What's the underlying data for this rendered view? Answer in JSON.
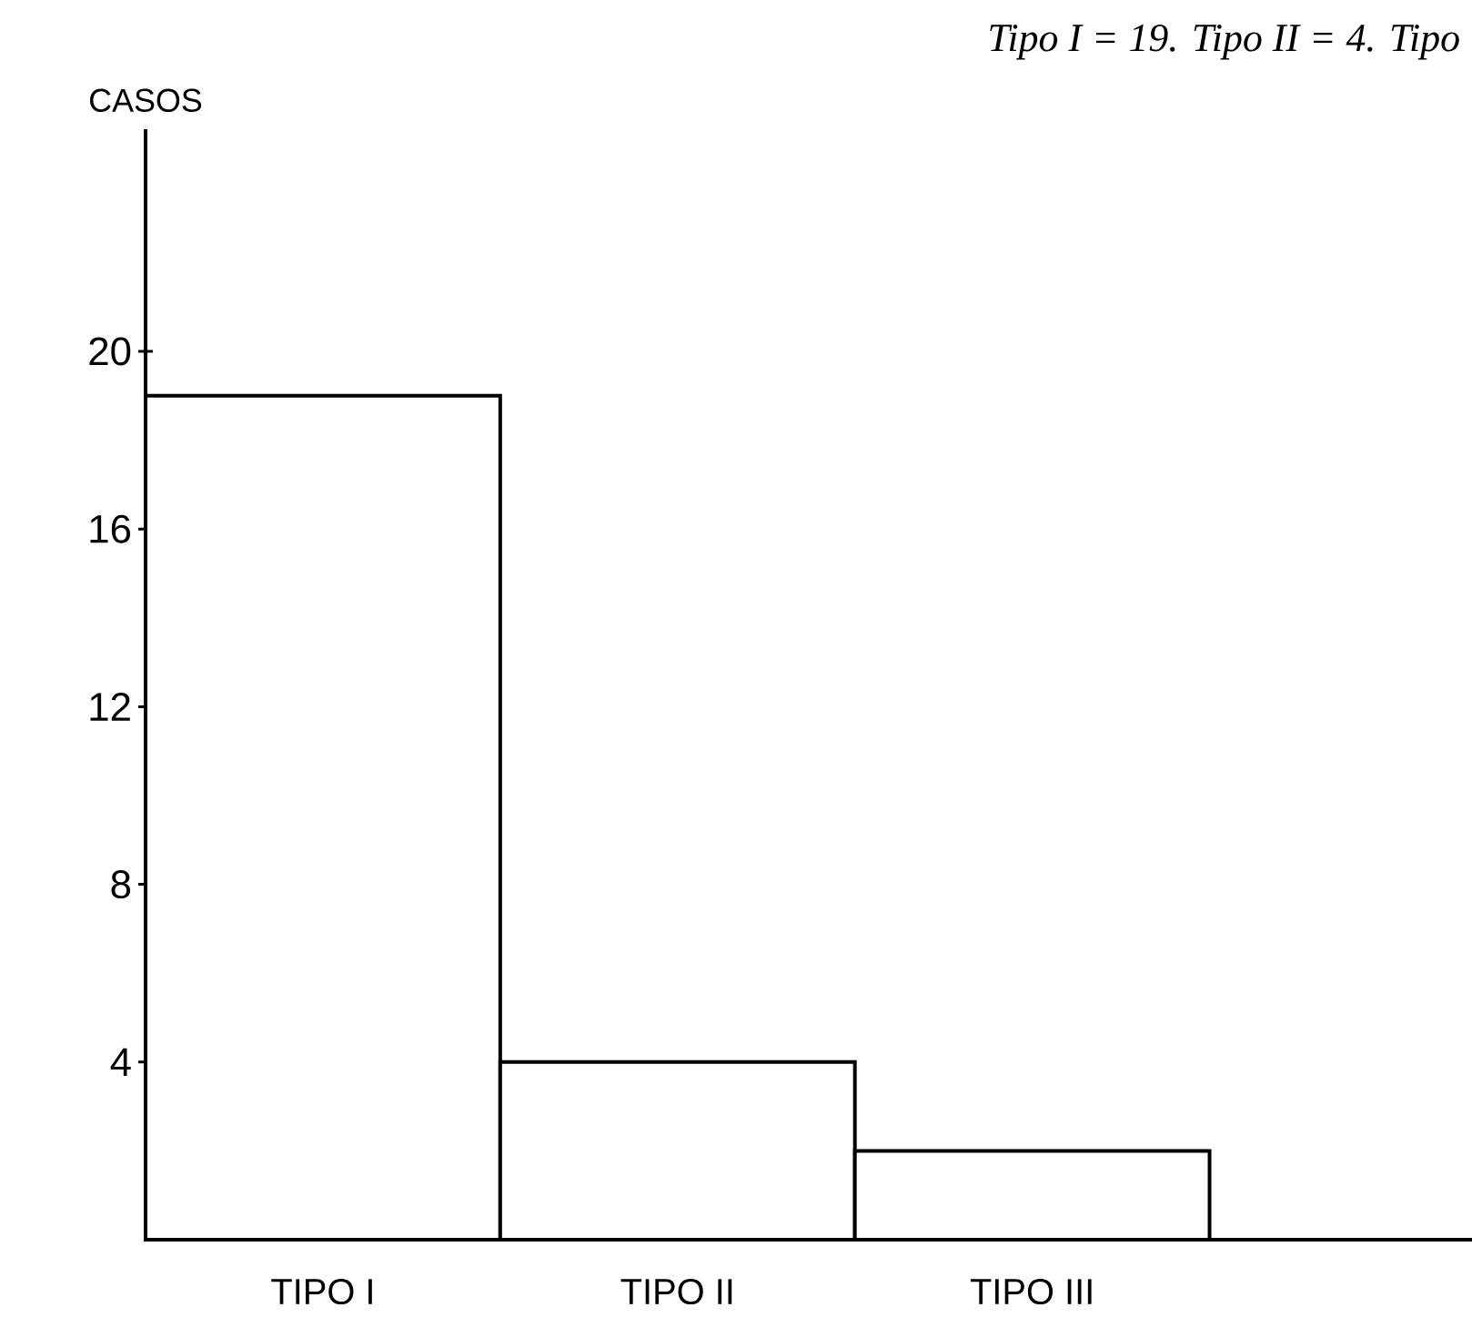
{
  "chart_data": {
    "type": "bar",
    "ylabel": "CASOS",
    "categories": [
      "TIPO I",
      "TIPO II",
      "TIPO III"
    ],
    "values": [
      19,
      4,
      2
    ],
    "color": "#ffffff",
    "ylim": [
      0,
      25
    ],
    "yticks": [
      4,
      8,
      12,
      16,
      20
    ],
    "grid": false,
    "annotations": [
      "Tipo I = 19. Tipo II = 4. Tipo"
    ]
  }
}
